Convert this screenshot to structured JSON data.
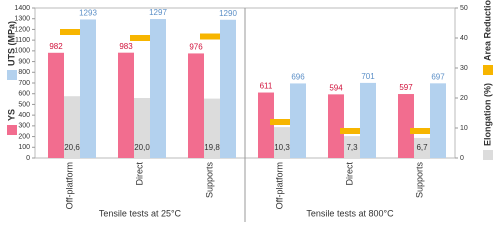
{
  "chart_data": {
    "type": "bar",
    "categories": [
      "Off-platform",
      "Direct",
      "Supports",
      "Off-platform",
      "Direct",
      "Supports"
    ],
    "groups": [
      "Tensile tests at 25°C",
      "Tensile tests at 800°C"
    ],
    "series": [
      {
        "name": "YS",
        "color": "#f26d8f",
        "values": [
          982,
          983,
          976,
          611,
          594,
          597
        ]
      },
      {
        "name": "Elongation (%)",
        "color": "#dcdcdc",
        "axis": "y2",
        "values": [
          20.6,
          20.0,
          19.8,
          10.3,
          7.3,
          6.7
        ],
        "value_labels": [
          "20,6",
          "20,0",
          "19,8",
          "10,3",
          "7,3",
          "6,7"
        ]
      },
      {
        "name": "UTS (MPa)",
        "color": "#b3d1ee",
        "values": [
          1293,
          1297,
          1290,
          696,
          701,
          697
        ]
      },
      {
        "name": "Area Reduction",
        "color": "#f7b500",
        "axis": "y2",
        "marker": "dash",
        "values": [
          42,
          40,
          40.5,
          12,
          9,
          9
        ]
      }
    ],
    "ylim": [
      0,
      1400
    ],
    "yticks": [
      0,
      100,
      200,
      300,
      400,
      500,
      600,
      700,
      800,
      900,
      1000,
      1100,
      1200,
      1300,
      1400
    ],
    "y2lim": [
      0,
      50
    ],
    "y2ticks": [
      0,
      10,
      20,
      30,
      40,
      50
    ]
  }
}
